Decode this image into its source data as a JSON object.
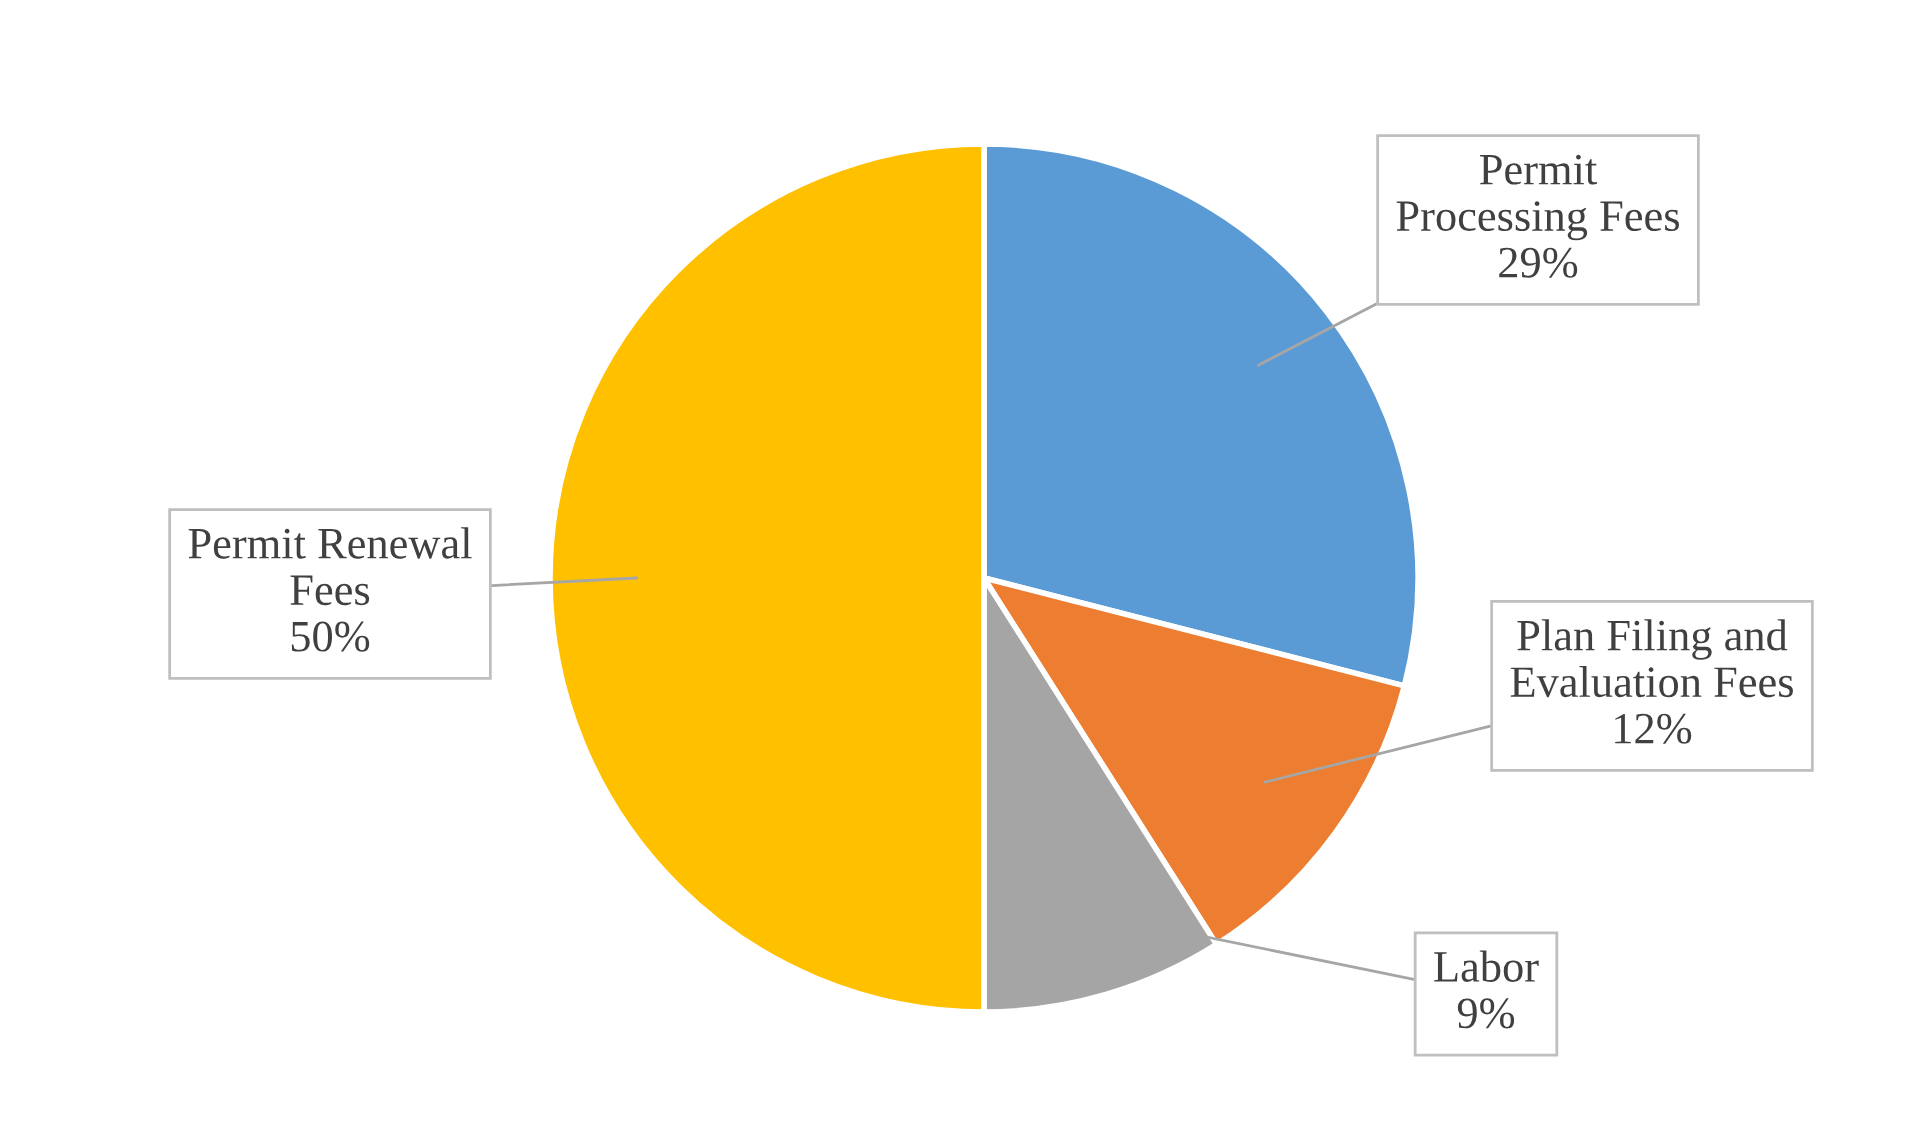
{
  "chart_data": {
    "type": "pie",
    "categories": [
      "Permit Processing Fees",
      "Plan Filing and Evaluation Fees",
      "Labor",
      "Permit Renewal Fees"
    ],
    "values": [
      29,
      12,
      9,
      50
    ],
    "value_labels": [
      "29%",
      "12%",
      "9%",
      "50%"
    ],
    "colors": [
      "#5b9bd5",
      "#ed7d31",
      "#a5a5a5",
      "#ffc000"
    ],
    "legend": false
  }
}
